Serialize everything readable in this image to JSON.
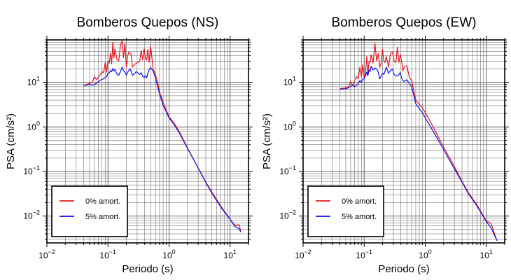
{
  "chart_data": [
    {
      "type": "line",
      "title": "Bomberos Quepos (NS)",
      "xlabel": "Periodo (s)",
      "ylabel": "PSA (cm/s²)",
      "xscale": "log",
      "yscale": "log",
      "xlim": [
        0.01,
        20
      ],
      "ylim": [
        0.0025,
        90
      ],
      "grid": true,
      "legend_position": "bottom-left",
      "x_ticks": [
        {
          "base": "10",
          "exp": "−2"
        },
        {
          "base": "10",
          "exp": "−1"
        },
        {
          "base": "10",
          "exp": "0"
        },
        {
          "base": "10",
          "exp": "1"
        }
      ],
      "y_ticks": [
        {
          "base": "10",
          "exp": "−2"
        },
        {
          "base": "10",
          "exp": "−1"
        },
        {
          "base": "10",
          "exp": "0"
        },
        {
          "base": "10",
          "exp": "1"
        }
      ],
      "series": [
        {
          "name": "0% amort.",
          "color": "#e8151b",
          "x": [
            0.04,
            0.045,
            0.05,
            0.055,
            0.06,
            0.065,
            0.07,
            0.075,
            0.08,
            0.085,
            0.09,
            0.095,
            0.1,
            0.105,
            0.11,
            0.115,
            0.12,
            0.125,
            0.13,
            0.14,
            0.15,
            0.16,
            0.17,
            0.18,
            0.19,
            0.2,
            0.21,
            0.22,
            0.23,
            0.24,
            0.25,
            0.27,
            0.29,
            0.31,
            0.33,
            0.35,
            0.37,
            0.39,
            0.41,
            0.43,
            0.45,
            0.47,
            0.5,
            0.55,
            0.6,
            0.65,
            0.7,
            0.8,
            0.9,
            1.0,
            1.2,
            1.5,
            2.0,
            3.0,
            4.0,
            5.0,
            7.0,
            10.0,
            12.0,
            14.0,
            15.0
          ],
          "y": [
            8.3,
            9.0,
            9.6,
            9.9,
            13.5,
            11.5,
            13.2,
            15.0,
            17.5,
            16.5,
            28,
            17,
            30,
            27,
            45,
            26,
            80,
            35,
            56,
            33,
            30,
            68,
            85,
            36,
            75,
            22,
            40,
            48,
            45,
            42,
            22,
            25,
            27,
            28,
            30,
            52,
            32,
            56,
            35,
            32,
            55,
            28,
            65,
            20,
            15,
            10,
            6.0,
            3.6,
            2.4,
            1.7,
            1.25,
            0.74,
            0.34,
            0.12,
            0.058,
            0.035,
            0.017,
            0.0085,
            0.0062,
            0.0064,
            0.0045
          ]
        },
        {
          "name": "5% amort.",
          "color": "#0f0ff0",
          "x": [
            0.04,
            0.045,
            0.05,
            0.055,
            0.06,
            0.065,
            0.07,
            0.075,
            0.08,
            0.085,
            0.09,
            0.095,
            0.1,
            0.105,
            0.11,
            0.115,
            0.12,
            0.125,
            0.13,
            0.14,
            0.15,
            0.16,
            0.17,
            0.18,
            0.19,
            0.2,
            0.21,
            0.22,
            0.23,
            0.24,
            0.25,
            0.27,
            0.29,
            0.31,
            0.33,
            0.35,
            0.37,
            0.39,
            0.41,
            0.43,
            0.45,
            0.47,
            0.5,
            0.55,
            0.6,
            0.65,
            0.7,
            0.8,
            0.9,
            1.0,
            1.2,
            1.5,
            2.0,
            3.0,
            4.0,
            5.0,
            7.0,
            10.0,
            12.0,
            14.0,
            15.0
          ],
          "y": [
            8.5,
            8.7,
            9.0,
            8.7,
            9.0,
            9.6,
            10.5,
            11.2,
            11.8,
            12.0,
            13.0,
            13.5,
            16.0,
            16.5,
            18.5,
            17.5,
            20.5,
            18.0,
            19.5,
            15.5,
            14.5,
            17.5,
            22.0,
            18.5,
            17.0,
            14.5,
            17.0,
            18.5,
            20.5,
            17.5,
            14.5,
            15.5,
            17.5,
            16.0,
            15.0,
            16.5,
            13.5,
            13.0,
            14.0,
            12.5,
            16.0,
            19.0,
            21.5,
            18.0,
            12.5,
            8.0,
            5.5,
            3.1,
            2.2,
            1.6,
            1.15,
            0.7,
            0.33,
            0.12,
            0.057,
            0.033,
            0.016,
            0.0085,
            0.0058,
            0.0052,
            0.0044
          ]
        }
      ]
    },
    {
      "type": "line",
      "title": "Bomberos Quepos (EW)",
      "xlabel": "Periodo (s)",
      "ylabel": "PSA (cm/s²)",
      "xscale": "log",
      "yscale": "log",
      "xlim": [
        0.01,
        20
      ],
      "ylim": [
        0.0025,
        90
      ],
      "grid": true,
      "legend_position": "bottom-left",
      "x_ticks": [
        {
          "base": "10",
          "exp": "−2"
        },
        {
          "base": "10",
          "exp": "−1"
        },
        {
          "base": "10",
          "exp": "0"
        },
        {
          "base": "10",
          "exp": "1"
        }
      ],
      "y_ticks": [
        {
          "base": "10",
          "exp": "−2"
        },
        {
          "base": "10",
          "exp": "−1"
        },
        {
          "base": "10",
          "exp": "0"
        },
        {
          "base": "10",
          "exp": "1"
        }
      ],
      "series": [
        {
          "name": "0% amort.",
          "color": "#e8151b",
          "x": [
            0.04,
            0.045,
            0.05,
            0.055,
            0.06,
            0.065,
            0.07,
            0.075,
            0.08,
            0.085,
            0.09,
            0.095,
            0.1,
            0.105,
            0.11,
            0.115,
            0.12,
            0.125,
            0.13,
            0.14,
            0.15,
            0.16,
            0.17,
            0.18,
            0.19,
            0.2,
            0.21,
            0.22,
            0.23,
            0.24,
            0.25,
            0.27,
            0.29,
            0.31,
            0.33,
            0.35,
            0.37,
            0.39,
            0.41,
            0.43,
            0.45,
            0.5,
            0.55,
            0.6,
            0.65,
            0.7,
            0.8,
            0.9,
            1.0,
            1.2,
            1.5,
            2.0,
            3.0,
            4.0,
            5.0,
            7.0,
            10.0,
            12.0,
            14.0,
            15.0
          ],
          "y": [
            7.2,
            7.4,
            7.6,
            7.8,
            10.5,
            8.5,
            11.0,
            13.5,
            12.0,
            22.0,
            13.5,
            25.0,
            13.0,
            16.0,
            38.0,
            15.0,
            30.0,
            28.0,
            42.0,
            27.0,
            75.0,
            30.0,
            45.0,
            22.0,
            28.0,
            55.0,
            30.0,
            28.0,
            38.0,
            30.0,
            22.0,
            45.0,
            48.0,
            30.0,
            28.0,
            62.0,
            28.0,
            42.0,
            30.0,
            18.0,
            22.0,
            24.0,
            13.0,
            11.0,
            6.5,
            4.0,
            3.2,
            2.7,
            2.1,
            1.35,
            0.75,
            0.35,
            0.13,
            0.06,
            0.035,
            0.018,
            0.0078,
            0.0068,
            0.0036,
            0.0028
          ]
        },
        {
          "name": "5% amort.",
          "color": "#0f0ff0",
          "x": [
            0.04,
            0.045,
            0.05,
            0.055,
            0.06,
            0.065,
            0.07,
            0.075,
            0.08,
            0.085,
            0.09,
            0.095,
            0.1,
            0.105,
            0.11,
            0.115,
            0.12,
            0.125,
            0.13,
            0.14,
            0.15,
            0.16,
            0.17,
            0.18,
            0.19,
            0.2,
            0.21,
            0.22,
            0.23,
            0.24,
            0.25,
            0.27,
            0.29,
            0.31,
            0.33,
            0.35,
            0.37,
            0.39,
            0.41,
            0.43,
            0.45,
            0.5,
            0.55,
            0.6,
            0.65,
            0.7,
            0.8,
            0.9,
            1.0,
            1.2,
            1.5,
            2.0,
            3.0,
            4.0,
            5.0,
            7.0,
            10.0,
            12.0,
            14.0,
            15.0
          ],
          "y": [
            7.0,
            7.1,
            7.2,
            7.5,
            8.2,
            8.6,
            8.0,
            8.7,
            9.5,
            11.0,
            10.0,
            12.0,
            12.0,
            14.0,
            17.0,
            14.0,
            19.0,
            17.5,
            23.0,
            19.0,
            21.0,
            20.0,
            17.0,
            12.0,
            14.0,
            16.0,
            15.0,
            18.0,
            22.0,
            19.0,
            16.0,
            18.5,
            20.0,
            15.0,
            14.0,
            14.0,
            15.0,
            16.5,
            12.5,
            11.0,
            10.5,
            11.5,
            9.5,
            8.0,
            5.0,
            3.3,
            2.6,
            2.1,
            1.6,
            1.05,
            0.62,
            0.31,
            0.115,
            0.058,
            0.033,
            0.017,
            0.0075,
            0.0055,
            0.0034,
            0.0028
          ]
        }
      ]
    }
  ]
}
